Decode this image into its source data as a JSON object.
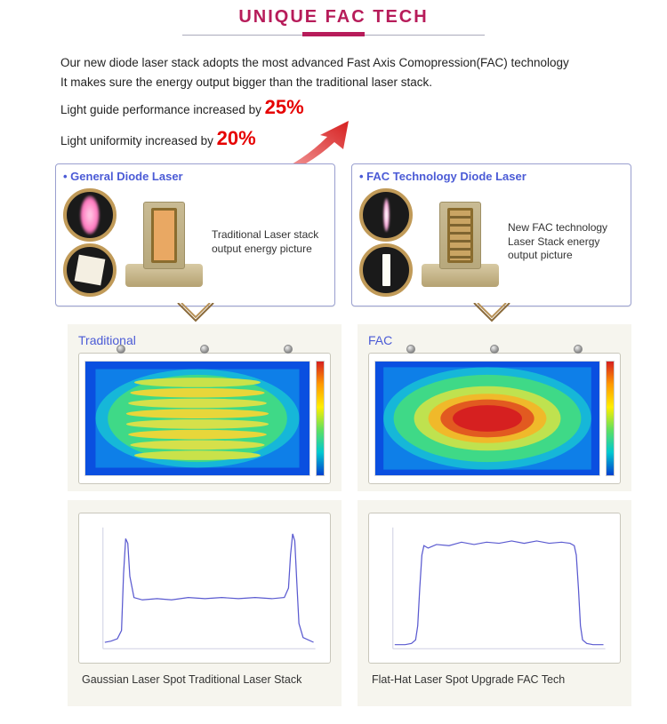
{
  "header": {
    "title": "UNIQUE FAC TECH",
    "title_color": "#b71c5a"
  },
  "intro": {
    "line1": "Our new diode laser stack adopts the most advanced Fast Axis Comopression(FAC) technology",
    "line2": "It makes sure the energy output bigger than the traditional laser stack.",
    "line3_pre": "Light guide performance increased by ",
    "pct1": "25%",
    "line4_pre": "Light uniformity increased by ",
    "pct2": "20%",
    "pct_color": "#e60000",
    "pct_fontsize": 22
  },
  "arrow_color": "#e23030",
  "cards": {
    "left": {
      "title": "General Diode Laser",
      "caption": "Traditional Laser stack output energy picture",
      "border_color": "#9aa0d0",
      "circle_border": "#c09a58",
      "panel_style": "flat"
    },
    "right": {
      "title": "FAC Technology Diode Laser",
      "caption": "New FAC technology Laser Stack energy output picture",
      "border_color": "#9aa0d0",
      "circle_border": "#c09a58",
      "panel_style": "grill"
    }
  },
  "heat": {
    "left": {
      "title": "Traditional",
      "type": "heatmap",
      "center_pattern": "striated",
      "colors": {
        "hot": "#d62020",
        "mid": "#60e060",
        "cold": "#0040d0",
        "bg_edge": "#0a4fe0"
      }
    },
    "right": {
      "title": "FAC",
      "type": "heatmap",
      "center_pattern": "solid",
      "colors": {
        "hot": "#d62020",
        "mid": "#60e060",
        "cold": "#0040d0",
        "bg_edge": "#0a4fe0"
      }
    },
    "panel_bg": "#f6f5ee"
  },
  "curves": {
    "left": {
      "type": "line",
      "caption": "Gaussian Laser Spot Traditional Laser Stack",
      "line_color": "#5a5ad0",
      "line_width": 1.2,
      "xlim": [
        0,
        100
      ],
      "ylim": [
        0,
        100
      ],
      "points": [
        [
          0,
          4
        ],
        [
          3,
          5
        ],
        [
          6,
          7
        ],
        [
          8,
          14
        ],
        [
          9,
          62
        ],
        [
          10,
          92
        ],
        [
          11,
          88
        ],
        [
          12,
          60
        ],
        [
          14,
          42
        ],
        [
          18,
          40
        ],
        [
          25,
          41
        ],
        [
          32,
          40
        ],
        [
          40,
          42
        ],
        [
          48,
          41
        ],
        [
          56,
          42
        ],
        [
          64,
          41
        ],
        [
          72,
          42
        ],
        [
          80,
          41
        ],
        [
          86,
          42
        ],
        [
          88,
          50
        ],
        [
          89,
          78
        ],
        [
          90,
          96
        ],
        [
          91,
          90
        ],
        [
          92,
          55
        ],
        [
          93,
          20
        ],
        [
          95,
          8
        ],
        [
          100,
          4
        ]
      ]
    },
    "right": {
      "type": "line",
      "caption": "Flat-Hat Laser Spot Upgrade FAC Tech",
      "line_color": "#5a5ad0",
      "line_width": 1.2,
      "xlim": [
        0,
        100
      ],
      "ylim": [
        0,
        100
      ],
      "points": [
        [
          0,
          2
        ],
        [
          5,
          2
        ],
        [
          8,
          3
        ],
        [
          10,
          6
        ],
        [
          11,
          18
        ],
        [
          12,
          50
        ],
        [
          13,
          78
        ],
        [
          14,
          86
        ],
        [
          16,
          84
        ],
        [
          20,
          87
        ],
        [
          26,
          86
        ],
        [
          32,
          89
        ],
        [
          38,
          87
        ],
        [
          44,
          89
        ],
        [
          50,
          88
        ],
        [
          56,
          90
        ],
        [
          62,
          88
        ],
        [
          68,
          90
        ],
        [
          74,
          88
        ],
        [
          80,
          89
        ],
        [
          84,
          88
        ],
        [
          86,
          86
        ],
        [
          87,
          78
        ],
        [
          88,
          50
        ],
        [
          89,
          18
        ],
        [
          90,
          6
        ],
        [
          92,
          3
        ],
        [
          95,
          2
        ],
        [
          100,
          2
        ]
      ]
    },
    "grid_color": "#cfd0e4"
  }
}
